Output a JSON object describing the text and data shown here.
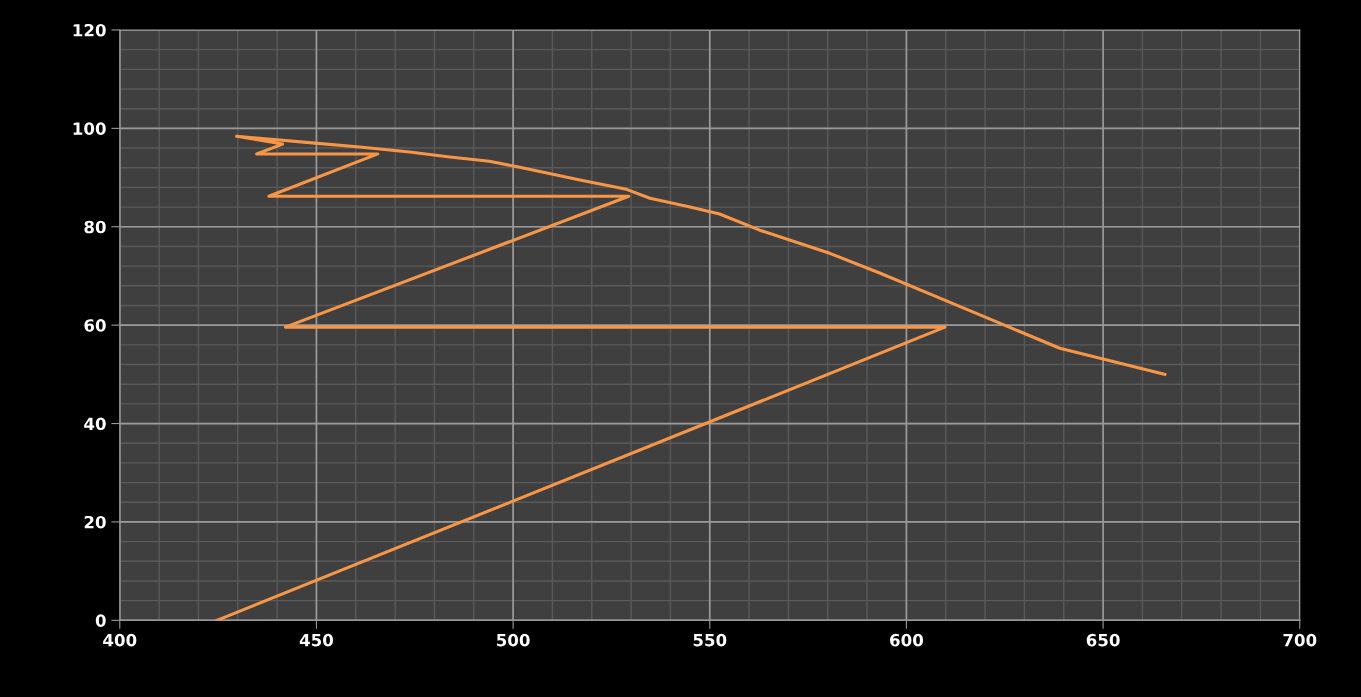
{
  "chart_data": {
    "type": "line",
    "x": [
      424.7,
      609.8,
      442.1,
      529.4,
      437.9,
      465.6,
      434.8,
      441.4,
      429.7,
      449.6,
      461.0,
      473.7,
      483.9,
      494.0,
      501.7,
      517.0,
      528.5,
      534.8,
      545.0,
      552.5,
      562.7,
      580.5,
      593.2,
      608.5,
      623.7,
      639.0,
      665.7
    ],
    "series": [
      {
        "color": "#f79646",
        "values": [
          0,
          59.6,
          59.6,
          86.2,
          86.2,
          94.8,
          94.8,
          96.8,
          98.4,
          97.0,
          96.2,
          95.2,
          94.2,
          93.3,
          92.1,
          89.5,
          87.7,
          85.8,
          84.0,
          82.6,
          79.3,
          74.6,
          70.6,
          65.5,
          60.4,
          55.3,
          50.0
        ]
      }
    ],
    "xlim": [
      400,
      700
    ],
    "xticks": [
      400,
      450,
      500,
      550,
      600,
      650,
      700
    ],
    "ylim": [
      0,
      120
    ],
    "yticks": [
      0,
      20,
      40,
      60,
      80,
      100,
      120
    ],
    "grid": true,
    "marker": "none",
    "line_style": "solid"
  }
}
